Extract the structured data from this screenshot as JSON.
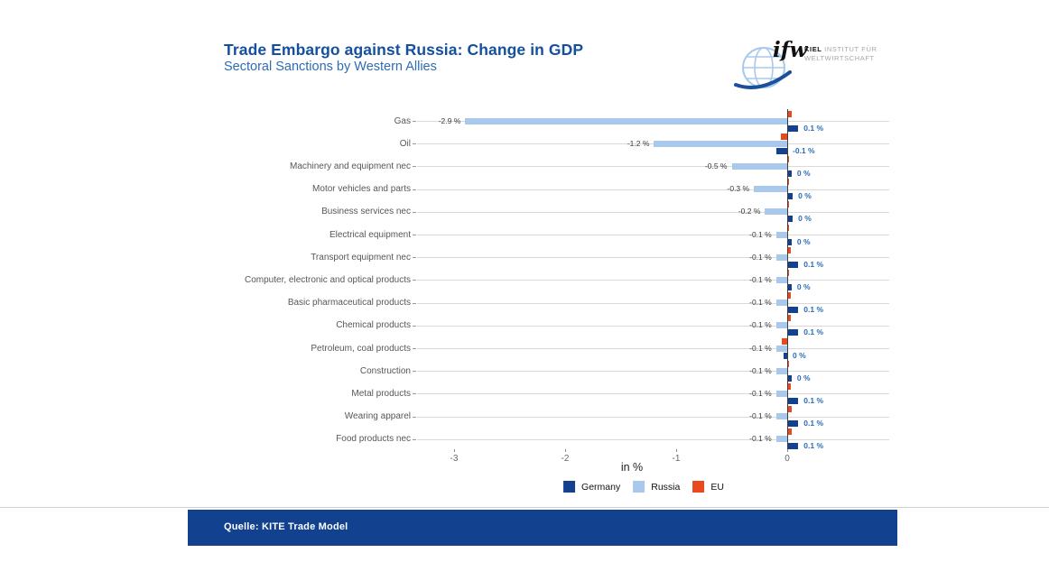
{
  "header": {
    "title": "Trade Embargo against Russia: Change in GDP",
    "subtitle": "Sectoral Sanctions by Western Allies"
  },
  "logo": {
    "script_mark": "ifw",
    "institute_bold": "KIEL",
    "institute_line1_rest": " INSTITUT FÜR",
    "institute_line2": "WELTWIRTSCHAFT"
  },
  "footer": {
    "source": "Quelle: KITE Trade Model"
  },
  "colors": {
    "title_blue": "#14509e",
    "subtitle_blue": "#2f6cb3",
    "germany": "#14418f",
    "russia": "#a9c9ec",
    "eu": "#e8491d",
    "footer_band": "#12418f",
    "grid": "#d9d9d9",
    "zero_line": "#3d3d3d",
    "value_label_blue": "#2a6db8"
  },
  "chart_data": {
    "type": "bar",
    "orientation": "horizontal",
    "title": "Trade Embargo against Russia: Change in GDP",
    "subtitle": "Sectoral Sanctions by Western Allies",
    "xlabel": "in %",
    "ylabel": "",
    "x_ticks": [
      "-3",
      "-2",
      "-1",
      "0"
    ],
    "xlim": [
      -3.35,
      0.95
    ],
    "grid": true,
    "legend_position": "bottom",
    "bar_order_top_to_bottom": [
      "EU",
      "Russia",
      "Germany"
    ],
    "categories": [
      "Gas",
      "Oil",
      "Machinery and equipment nec",
      "Motor vehicles and parts",
      "Business services nec",
      "Electrical equipment",
      "Transport equipment nec",
      "Computer, electronic and optical products",
      "Basic pharmaceutical products",
      "Chemical products",
      "Petroleum, coal products",
      "Construction",
      "Metal products",
      "Wearing apparel",
      "Food products nec"
    ],
    "series": [
      {
        "name": "Germany",
        "color": "#14418f",
        "labels": [
          "0.1 %",
          "-0.1 %",
          "0 %",
          "0 %",
          "0 %",
          "0 %",
          "0.1 %",
          "0 %",
          "0.1 %",
          "0.1 %",
          "0 %",
          "0 %",
          "0.1 %",
          "0.1 %",
          "0.1 %"
        ],
        "values": [
          0.1,
          -0.1,
          0.04,
          0.05,
          0.05,
          0.04,
          0.1,
          0.04,
          0.1,
          0.1,
          -0.03,
          0.04,
          0.1,
          0.1,
          0.1
        ]
      },
      {
        "name": "Russia",
        "color": "#a9c9ec",
        "labels": [
          "-2.9 %",
          "-1.2 %",
          "-0.5 %",
          "-0.3 %",
          "-0.2 %",
          "-0.1 %",
          "-0.1 %",
          "-0.1 %",
          "-0.1 %",
          "-0.1 %",
          "-0.1 %",
          "-0.1 %",
          "-0.1 %",
          "-0.1 %",
          "-0.1 %"
        ],
        "values": [
          -2.9,
          -1.2,
          -0.5,
          -0.3,
          -0.2,
          -0.1,
          -0.1,
          -0.1,
          -0.1,
          -0.1,
          -0.1,
          -0.1,
          -0.1,
          -0.1,
          -0.1
        ]
      },
      {
        "name": "EU",
        "color": "#e8491d",
        "labels": [
          "",
          "",
          "",
          "",
          "",
          "",
          "",
          "",
          "",
          "",
          "",
          "",
          "",
          "",
          ""
        ],
        "values": [
          0.04,
          -0.06,
          0.02,
          0.02,
          0.02,
          0.02,
          0.03,
          0.02,
          0.03,
          0.03,
          -0.05,
          0.02,
          0.03,
          0.04,
          0.04
        ]
      }
    ],
    "legend": [
      {
        "name": "Germany",
        "color": "#14418f"
      },
      {
        "name": "Russia",
        "color": "#a9c9ec"
      },
      {
        "name": "EU",
        "color": "#e8491d"
      }
    ]
  }
}
